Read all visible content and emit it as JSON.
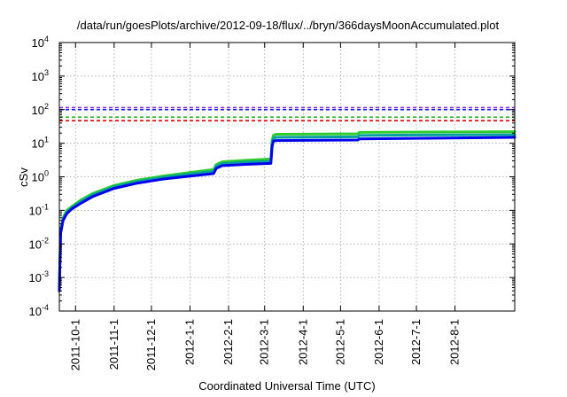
{
  "chart_data": {
    "type": "line",
    "title": "/data/run/goesPlots/archive/2012-09-18/flux/../bryn/366daysMoonAccumulated.plot",
    "xlabel": "Coordinated Universal Time (UTC)",
    "ylabel": "cSv",
    "yscale": "log",
    "ylim": [
      0.0001,
      10000
    ],
    "xlim": [
      "2011-09-18",
      "2012-09-18"
    ],
    "x_ticks": [
      "2011-10-1",
      "2011-11-1",
      "2011-12-1",
      "2012-1-1",
      "2012-2-1",
      "2012-3-1",
      "2012-4-1",
      "2012-5-1",
      "2012-6-1",
      "2012-7-1",
      "2012-8-1"
    ],
    "y_ticks": [
      {
        "base": "10",
        "exp": "-4"
      },
      {
        "base": "10",
        "exp": "-3"
      },
      {
        "base": "10",
        "exp": "-2"
      },
      {
        "base": "10",
        "exp": "-1"
      },
      {
        "base": "10",
        "exp": "0"
      },
      {
        "base": "10",
        "exp": "1"
      },
      {
        "base": "10",
        "exp": "2"
      },
      {
        "base": "10",
        "exp": "3"
      },
      {
        "base": "10",
        "exp": "4"
      }
    ],
    "grid": true,
    "threshold_lines": [
      {
        "value": 115,
        "color": "#8a2be2"
      },
      {
        "value": 100,
        "color": "#1a1aff"
      },
      {
        "value": 60,
        "color": "#2eb82e"
      },
      {
        "value": 47,
        "color": "#e00000"
      }
    ],
    "series": [
      {
        "color": "#2ecc2e",
        "x": [
          "2011-09-18",
          "2011-09-19",
          "2011-09-21",
          "2011-09-24",
          "2011-09-28",
          "2011-10-05",
          "2011-10-15",
          "2011-11-01",
          "2011-11-20",
          "2011-12-10",
          "2012-01-01",
          "2012-01-20",
          "2012-01-22",
          "2012-01-23",
          "2012-01-27",
          "2012-02-15",
          "2012-03-06",
          "2012-03-07",
          "2012-03-08",
          "2012-03-10",
          "2012-05-15",
          "2012-05-16",
          "2012-07-01",
          "2012-09-18"
        ],
        "values": [
          0.0006,
          0.025,
          0.06,
          0.1,
          0.13,
          0.2,
          0.32,
          0.55,
          0.8,
          1.05,
          1.35,
          1.65,
          2.3,
          2.4,
          2.8,
          3.1,
          3.4,
          12,
          17,
          18.5,
          19,
          21,
          21.5,
          22
        ]
      },
      {
        "color": "#00a0a0",
        "x": [
          "2011-09-18",
          "2011-09-19",
          "2011-09-21",
          "2011-09-24",
          "2011-09-28",
          "2011-10-05",
          "2011-10-15",
          "2011-11-01",
          "2011-11-20",
          "2011-12-10",
          "2012-01-01",
          "2012-01-20",
          "2012-01-22",
          "2012-01-23",
          "2012-01-27",
          "2012-02-15",
          "2012-03-06",
          "2012-03-07",
          "2012-03-08",
          "2012-03-10",
          "2012-05-15",
          "2012-05-16",
          "2012-07-01",
          "2012-09-18"
        ],
        "values": [
          0.0005,
          0.022,
          0.055,
          0.09,
          0.12,
          0.18,
          0.29,
          0.5,
          0.72,
          0.95,
          1.2,
          1.45,
          2.0,
          2.1,
          2.45,
          2.7,
          2.9,
          10,
          14,
          15,
          15.5,
          17,
          17.5,
          18
        ]
      },
      {
        "color": "#0000ee",
        "x": [
          "2011-09-18",
          "2011-09-19",
          "2011-09-21",
          "2011-09-24",
          "2011-09-28",
          "2011-10-05",
          "2011-10-15",
          "2011-11-01",
          "2011-11-20",
          "2011-12-10",
          "2012-01-01",
          "2012-01-20",
          "2012-01-22",
          "2012-01-23",
          "2012-01-27",
          "2012-02-15",
          "2012-03-06",
          "2012-03-07",
          "2012-03-08",
          "2012-03-10",
          "2012-05-15",
          "2012-05-16",
          "2012-07-01",
          "2012-09-18"
        ],
        "values": [
          0.0004,
          0.02,
          0.05,
          0.08,
          0.11,
          0.16,
          0.26,
          0.45,
          0.65,
          0.85,
          1.05,
          1.25,
          1.75,
          1.85,
          2.15,
          2.35,
          2.5,
          8,
          11.5,
          12,
          12.5,
          13.5,
          14,
          15
        ]
      }
    ]
  }
}
